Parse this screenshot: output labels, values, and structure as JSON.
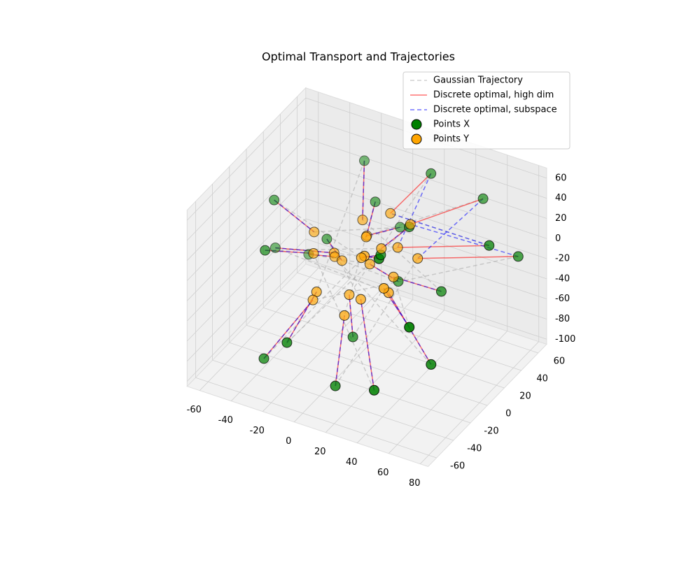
{
  "chart_data": {
    "type": "scatter3d",
    "title": "Optimal Transport and Trajectories",
    "xlim": [
      -68,
      85
    ],
    "ylim": [
      -70,
      70
    ],
    "zlim": [
      -105,
      70
    ],
    "xticks": [
      -60,
      -40,
      -20,
      0,
      20,
      40,
      60,
      80
    ],
    "yticks": [
      -60,
      -40,
      -20,
      0,
      20,
      40,
      60
    ],
    "zticks": [
      -100,
      -80,
      -60,
      -40,
      -20,
      0,
      20,
      40,
      60
    ],
    "grid": true,
    "legend": "upper right",
    "points": [
      {
        "name": "Points X",
        "color": "#008000",
        "values": [
          [
            -55,
            10,
            -30
          ],
          [
            40,
            -50,
            -70
          ],
          [
            70,
            30,
            20
          ],
          [
            -20,
            50,
            40
          ],
          [
            10,
            -40,
            -90
          ],
          [
            60,
            -20,
            -60
          ],
          [
            -40,
            -30,
            10
          ],
          [
            25,
            45,
            55
          ],
          [
            -10,
            -60,
            -40
          ],
          [
            75,
            55,
            -10
          ],
          [
            -50,
            40,
            -60
          ],
          [
            30,
            10,
            35
          ],
          [
            5,
            -10,
            -70
          ],
          [
            50,
            60,
            30
          ],
          [
            -30,
            -50,
            -75
          ],
          [
            15,
            25,
            -40
          ],
          [
            -45,
            -10,
            40
          ],
          [
            65,
            -55,
            10
          ],
          [
            0,
            55,
            -20
          ],
          [
            35,
            -35,
            45
          ],
          [
            -25,
            15,
            -10
          ],
          [
            20,
            -5,
            15
          ],
          [
            45,
            20,
            -30
          ],
          [
            -5,
            35,
            20
          ]
        ]
      },
      {
        "name": "Points Y",
        "color": "#ffa500",
        "values": [
          [
            -15,
            5,
            -10
          ],
          [
            10,
            -10,
            -30
          ],
          [
            20,
            15,
            5
          ],
          [
            -5,
            20,
            15
          ],
          [
            5,
            -20,
            -40
          ],
          [
            25,
            -5,
            -20
          ],
          [
            -20,
            -10,
            0
          ],
          [
            10,
            25,
            25
          ],
          [
            -10,
            -25,
            -20
          ],
          [
            30,
            20,
            -5
          ],
          [
            -20,
            15,
            -25
          ],
          [
            15,
            5,
            10
          ],
          [
            0,
            -5,
            -35
          ],
          [
            20,
            30,
            15
          ],
          [
            -15,
            -20,
            -35
          ],
          [
            5,
            10,
            -15
          ],
          [
            -25,
            0,
            10
          ],
          [
            30,
            -20,
            0
          ],
          [
            -5,
            25,
            -5
          ],
          [
            15,
            -15,
            20
          ],
          [
            -10,
            5,
            -15
          ],
          [
            5,
            0,
            0
          ],
          [
            20,
            10,
            -20
          ],
          [
            0,
            15,
            5
          ]
        ]
      }
    ],
    "lines": [
      {
        "name": "Gaussian Trajectory",
        "color": "#aaaaaa",
        "dash": true,
        "ends": [
          [
            25,
            -5,
            -20
          ],
          [
            -20,
            -10,
            0
          ],
          [
            10,
            25,
            25
          ],
          [
            -10,
            -25,
            -20
          ],
          [
            30,
            20,
            -5
          ],
          [
            -20,
            15,
            -25
          ],
          [
            15,
            5,
            10
          ],
          [
            0,
            -5,
            -35
          ],
          [
            20,
            30,
            15
          ],
          [
            -15,
            -20,
            -35
          ],
          [
            5,
            10,
            -15
          ],
          [
            -25,
            0,
            10
          ],
          [
            30,
            -20,
            0
          ],
          [
            -5,
            25,
            -5
          ],
          [
            15,
            -15,
            20
          ],
          [
            -10,
            5,
            -15
          ],
          [
            5,
            0,
            0
          ],
          [
            20,
            10,
            -20
          ],
          [
            0,
            15,
            5
          ],
          [
            -15,
            5,
            -10
          ],
          [
            10,
            -10,
            -30
          ],
          [
            20,
            15,
            5
          ],
          [
            -5,
            20,
            15
          ],
          [
            5,
            -20,
            -40
          ]
        ]
      },
      {
        "name": "Discrete optimal, high dim",
        "color": "#ff0000",
        "dash": false,
        "ends": [
          [
            -15,
            5,
            -10
          ],
          [
            10,
            -10,
            -30
          ],
          [
            20,
            15,
            5
          ],
          [
            -5,
            20,
            15
          ],
          [
            5,
            -20,
            -40
          ],
          [
            25,
            -5,
            -20
          ],
          [
            -20,
            -10,
            0
          ],
          [
            10,
            25,
            25
          ],
          [
            -10,
            -25,
            -20
          ],
          [
            30,
            20,
            -5
          ],
          [
            -20,
            15,
            -25
          ],
          [
            15,
            5,
            10
          ],
          [
            0,
            -5,
            -35
          ],
          [
            20,
            30,
            15
          ],
          [
            -15,
            -20,
            -35
          ],
          [
            5,
            10,
            -15
          ],
          [
            -25,
            0,
            10
          ],
          [
            30,
            -20,
            0
          ],
          [
            -5,
            25,
            -5
          ],
          [
            15,
            -15,
            20
          ],
          [
            -10,
            5,
            -15
          ],
          [
            5,
            0,
            0
          ],
          [
            20,
            10,
            -20
          ],
          [
            0,
            15,
            5
          ]
        ]
      },
      {
        "name": "Discrete optimal, subspace",
        "color": "#0000ff",
        "dash": true,
        "ends": [
          [
            -15,
            5,
            -10
          ],
          [
            10,
            -10,
            -30
          ],
          [
            10,
            25,
            25
          ],
          [
            -5,
            20,
            15
          ],
          [
            5,
            -20,
            -40
          ],
          [
            25,
            -5,
            -20
          ],
          [
            -20,
            -10,
            0
          ],
          [
            20,
            15,
            5
          ],
          [
            -10,
            -25,
            -20
          ],
          [
            20,
            30,
            15
          ],
          [
            -20,
            15,
            -25
          ],
          [
            15,
            5,
            10
          ],
          [
            0,
            -5,
            -35
          ],
          [
            30,
            20,
            -5
          ],
          [
            -15,
            -20,
            -35
          ],
          [
            5,
            10,
            -15
          ],
          [
            -25,
            0,
            10
          ],
          [
            30,
            -20,
            0
          ],
          [
            -5,
            25,
            -5
          ],
          [
            15,
            -15,
            20
          ],
          [
            -10,
            5,
            -15
          ],
          [
            5,
            0,
            0
          ],
          [
            20,
            10,
            -20
          ],
          [
            0,
            15,
            5
          ]
        ]
      }
    ]
  }
}
